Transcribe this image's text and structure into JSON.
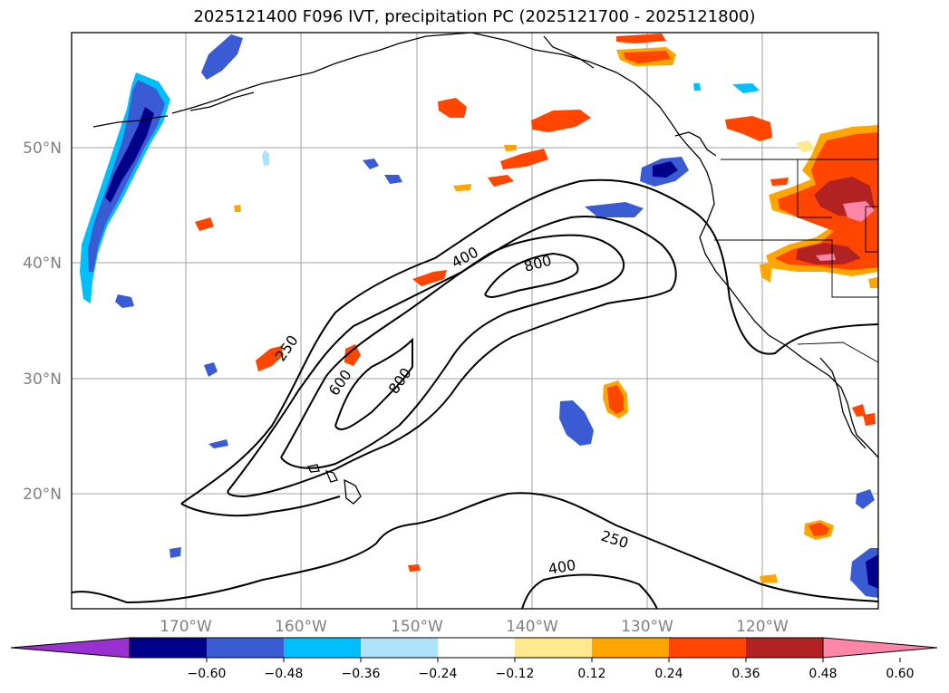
{
  "title": "2025121400 F096 IVT, precipitation PC (2025121700 - 2025121800)",
  "map": {
    "lat_ticks": [
      "50°N",
      "40°N",
      "30°N",
      "20°N"
    ],
    "lon_ticks": [
      "170°W",
      "160°W",
      "150°W",
      "140°W",
      "130°W",
      "120°W"
    ],
    "ivt_contour_labels": [
      "250",
      "400",
      "600",
      "800",
      "800",
      "250",
      "400"
    ],
    "colors": {
      "coast": "#000000",
      "grid": "#a0a0a0"
    }
  },
  "colorbar": {
    "ticks": [
      "−0.60",
      "−0.48",
      "−0.36",
      "−0.24",
      "−0.12",
      "0.12",
      "0.24",
      "0.36",
      "0.48",
      "0.60"
    ],
    "colors": [
      "#9b30d0",
      "#00008b",
      "#3a5bd4",
      "#00bfff",
      "#aee2fb",
      "#ffffff",
      "#ffe98c",
      "#ffa500",
      "#ff4500",
      "#b22222",
      "#ff85a8"
    ]
  }
}
